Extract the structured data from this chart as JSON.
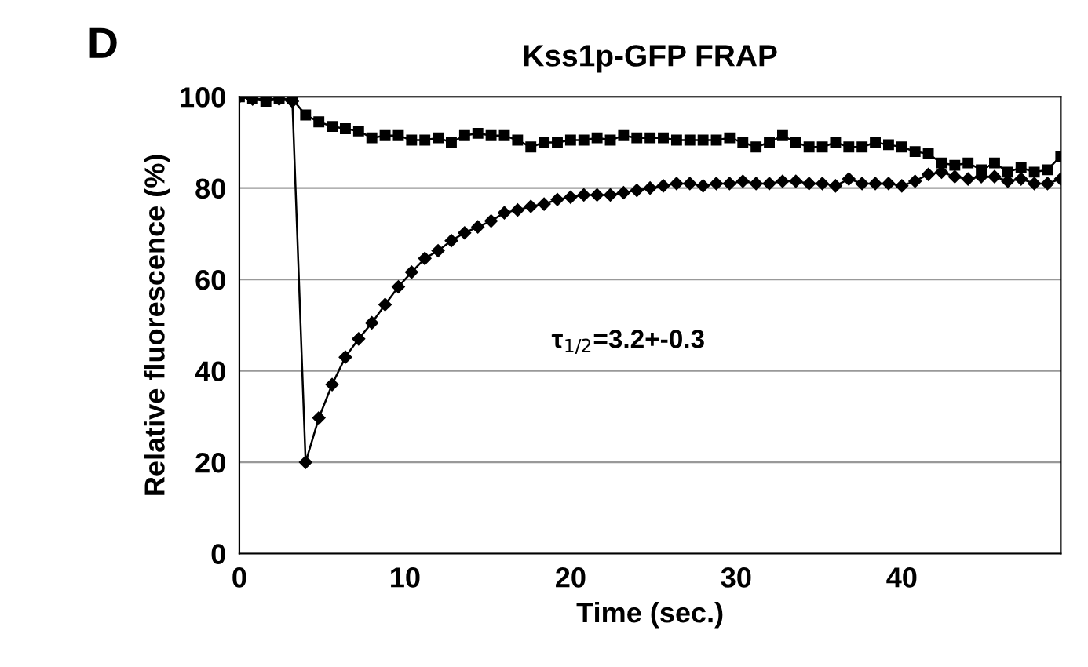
{
  "chart_data": {
    "type": "line",
    "title": "Kss1p-GFP FRAP",
    "xlabel": "Time (sec.)",
    "ylabel": "Relative fluorescence (%)",
    "annotations": [
      "D",
      "τ$_{1/2}$=3.2+-0.3"
    ],
    "x": [
      0,
      0.8,
      1.6,
      2.4,
      3.2,
      4.0,
      4.8,
      5.6,
      6.4,
      7.2,
      8.0,
      8.8,
      9.6,
      10.4,
      11.2,
      12.0,
      12.8,
      13.6,
      14.4,
      15.2,
      16.0,
      16.8,
      17.6,
      18.4,
      19.2,
      20.0,
      20.8,
      21.6,
      22.4,
      23.2,
      24.0,
      24.8,
      25.6,
      26.4,
      27.2,
      28.0,
      28.8,
      29.6,
      30.4,
      31.2,
      32.0,
      32.8,
      33.6,
      34.4,
      35.2,
      36.0,
      36.8,
      37.6,
      38.4,
      39.2,
      40.0,
      40.8,
      41.6,
      42.4,
      43.2,
      44.0,
      44.8,
      45.6,
      46.4,
      47.2,
      48.0,
      48.8,
      49.6
    ],
    "series": [
      {
        "color": "#000000",
        "marker": "square",
        "values": [
          100,
          99.5,
          99,
          99.5,
          99.5,
          96,
          94.5,
          93.5,
          93,
          92.5,
          91,
          91.5,
          91.5,
          90.5,
          90.5,
          91,
          90,
          91.5,
          92,
          91.5,
          91.5,
          90.5,
          89,
          90,
          90,
          90.5,
          90.5,
          91,
          90.5,
          91.5,
          91,
          91,
          91,
          90.5,
          90.5,
          90.5,
          90.5,
          91,
          90,
          89,
          90,
          91.5,
          90,
          89,
          89,
          90,
          89,
          89,
          90,
          89.5,
          89,
          88,
          87.5,
          85.5,
          85,
          85.5,
          84,
          85.5,
          83.5,
          84.5,
          83.5,
          84,
          87
        ]
      },
      {
        "color": "#000000",
        "marker": "diamond",
        "values": [
          100,
          99.5,
          99.5,
          99.5,
          99,
          20,
          29.7,
          37,
          43,
          47,
          50.5,
          54.5,
          58.4,
          61.6,
          64.6,
          66.3,
          68.5,
          70.2,
          71.5,
          72.8,
          74.6,
          75.2,
          76,
          76.5,
          77.5,
          78,
          78.5,
          78.5,
          78.5,
          79,
          79.5,
          80,
          80.5,
          81,
          81,
          80.5,
          81,
          81,
          81.5,
          81,
          81,
          81.5,
          81.5,
          81,
          81,
          80.5,
          82,
          81,
          81,
          81,
          80.5,
          81.5,
          83,
          83.5,
          82.5,
          82,
          82.5,
          82.5,
          81.5,
          82,
          81,
          81,
          82
        ]
      }
    ],
    "xlim": [
      0,
      49.6
    ],
    "xticks": [
      0,
      10,
      20,
      30,
      40
    ],
    "ylim": [
      0,
      100
    ],
    "yticks": [
      0,
      20,
      40,
      60,
      80,
      100
    ],
    "grid": "y",
    "line_style": "solid"
  }
}
